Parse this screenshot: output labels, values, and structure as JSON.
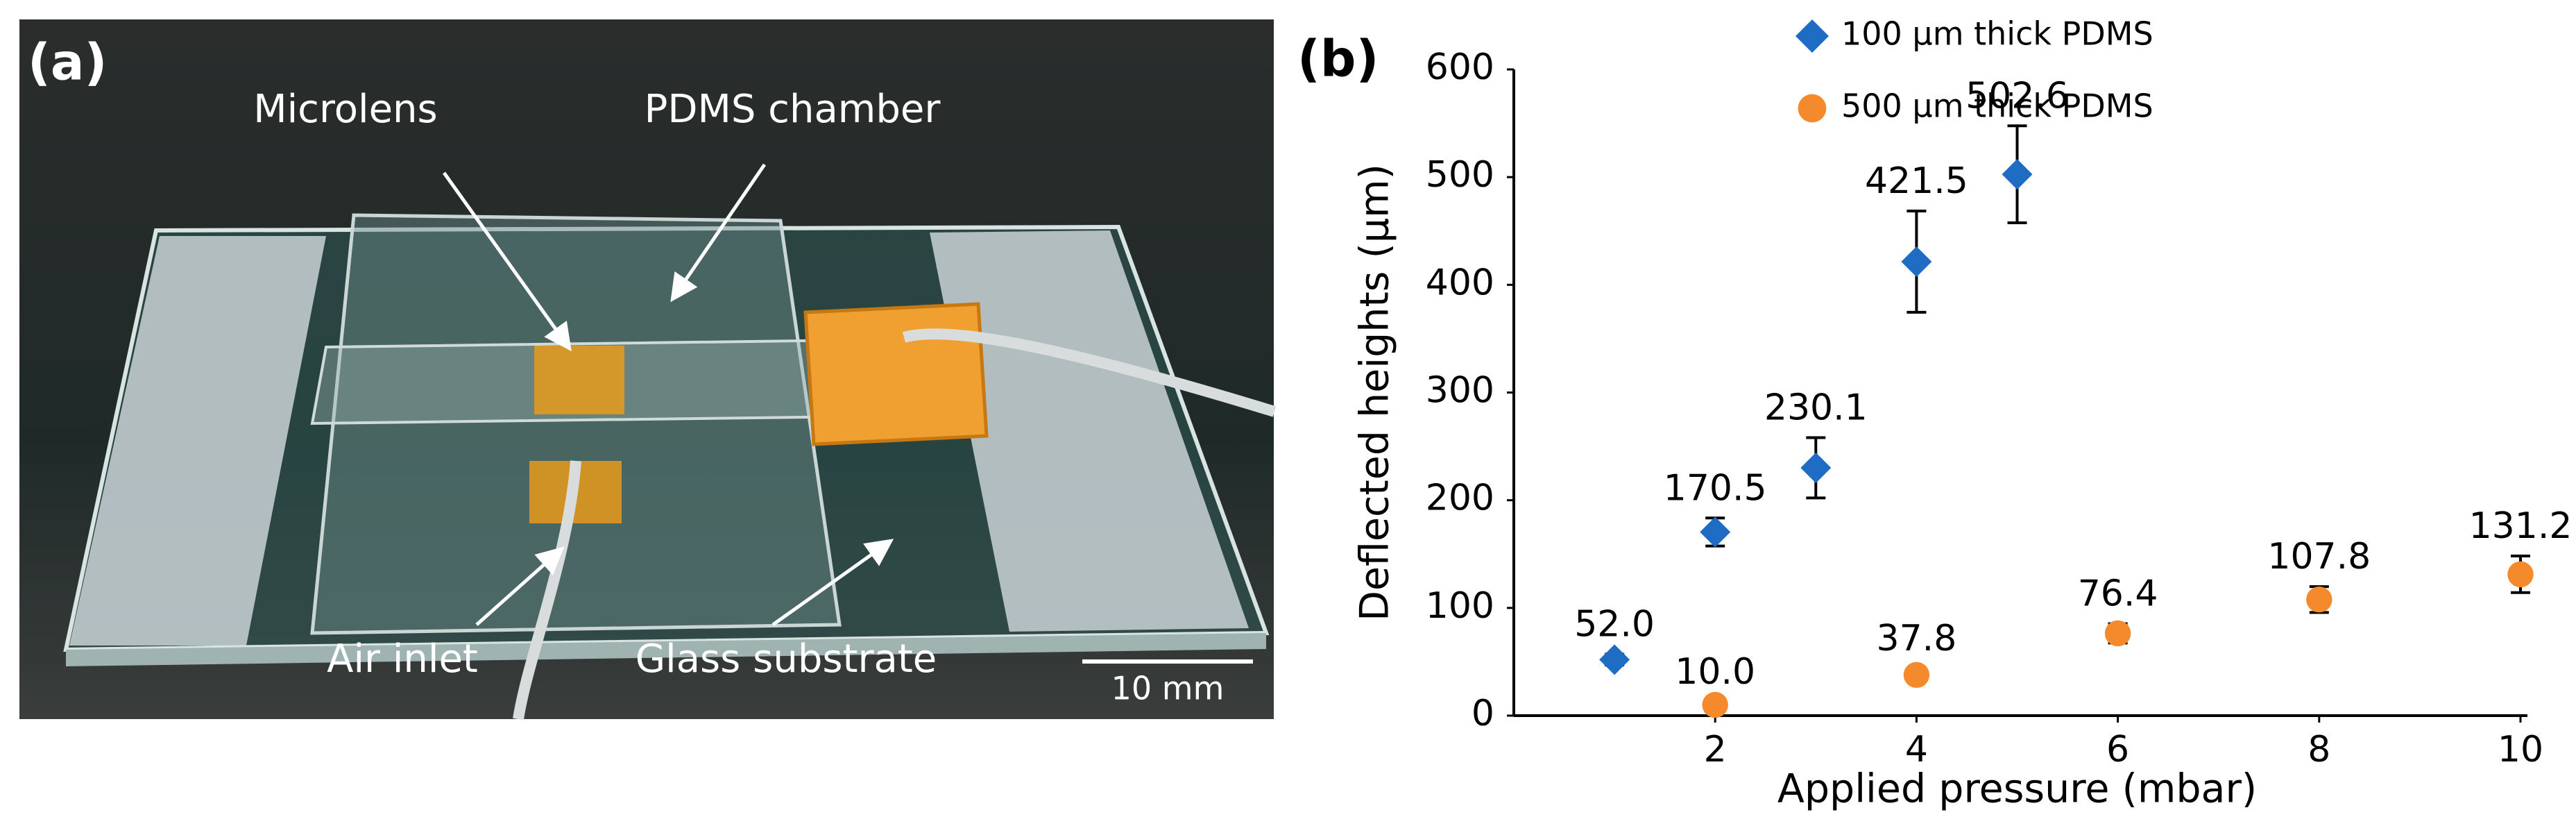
{
  "photo": {
    "panel_label": "(a)",
    "annotations": [
      "Microlens",
      "PDMS chamber",
      "Air inlet",
      "Glass substrate"
    ],
    "scale_bar": "10 mm"
  },
  "chart_data": {
    "type": "scatter",
    "panel_label": "(b)",
    "x_label": "Applied pressure (mbar)",
    "y_label": "Deflected heights  (μm)",
    "xlim": [
      0,
      10
    ],
    "xticks": [
      2,
      4,
      6,
      8,
      10
    ],
    "ylim": [
      0,
      600
    ],
    "yticks": [
      0,
      100,
      200,
      300,
      400,
      500,
      600
    ],
    "grid": false,
    "legend": "upper right",
    "series": [
      {
        "name": "100 μm thick PDMS",
        "color": "#1f6cc4",
        "marker": "diamond",
        "x": [
          1,
          2,
          3,
          4,
          5
        ],
        "values": [
          52.0,
          170.5,
          230.1,
          421.5,
          502.6
        ],
        "errors": [
          5,
          13,
          28,
          47,
          45
        ],
        "value_labels": [
          "52.0",
          "170.5",
          "230.1",
          "421.5",
          "502.6"
        ]
      },
      {
        "name": "500 μm thick PDMS",
        "color": "#f58a2c",
        "marker": "circle",
        "x": [
          2,
          4,
          6,
          8,
          10
        ],
        "values": [
          10.0,
          37.8,
          76.4,
          107.8,
          131.2
        ],
        "errors": [
          3,
          6,
          9,
          12,
          17
        ],
        "value_labels": [
          "10.0",
          "37.8",
          "76.4",
          "107.8",
          "131.2"
        ]
      }
    ]
  }
}
